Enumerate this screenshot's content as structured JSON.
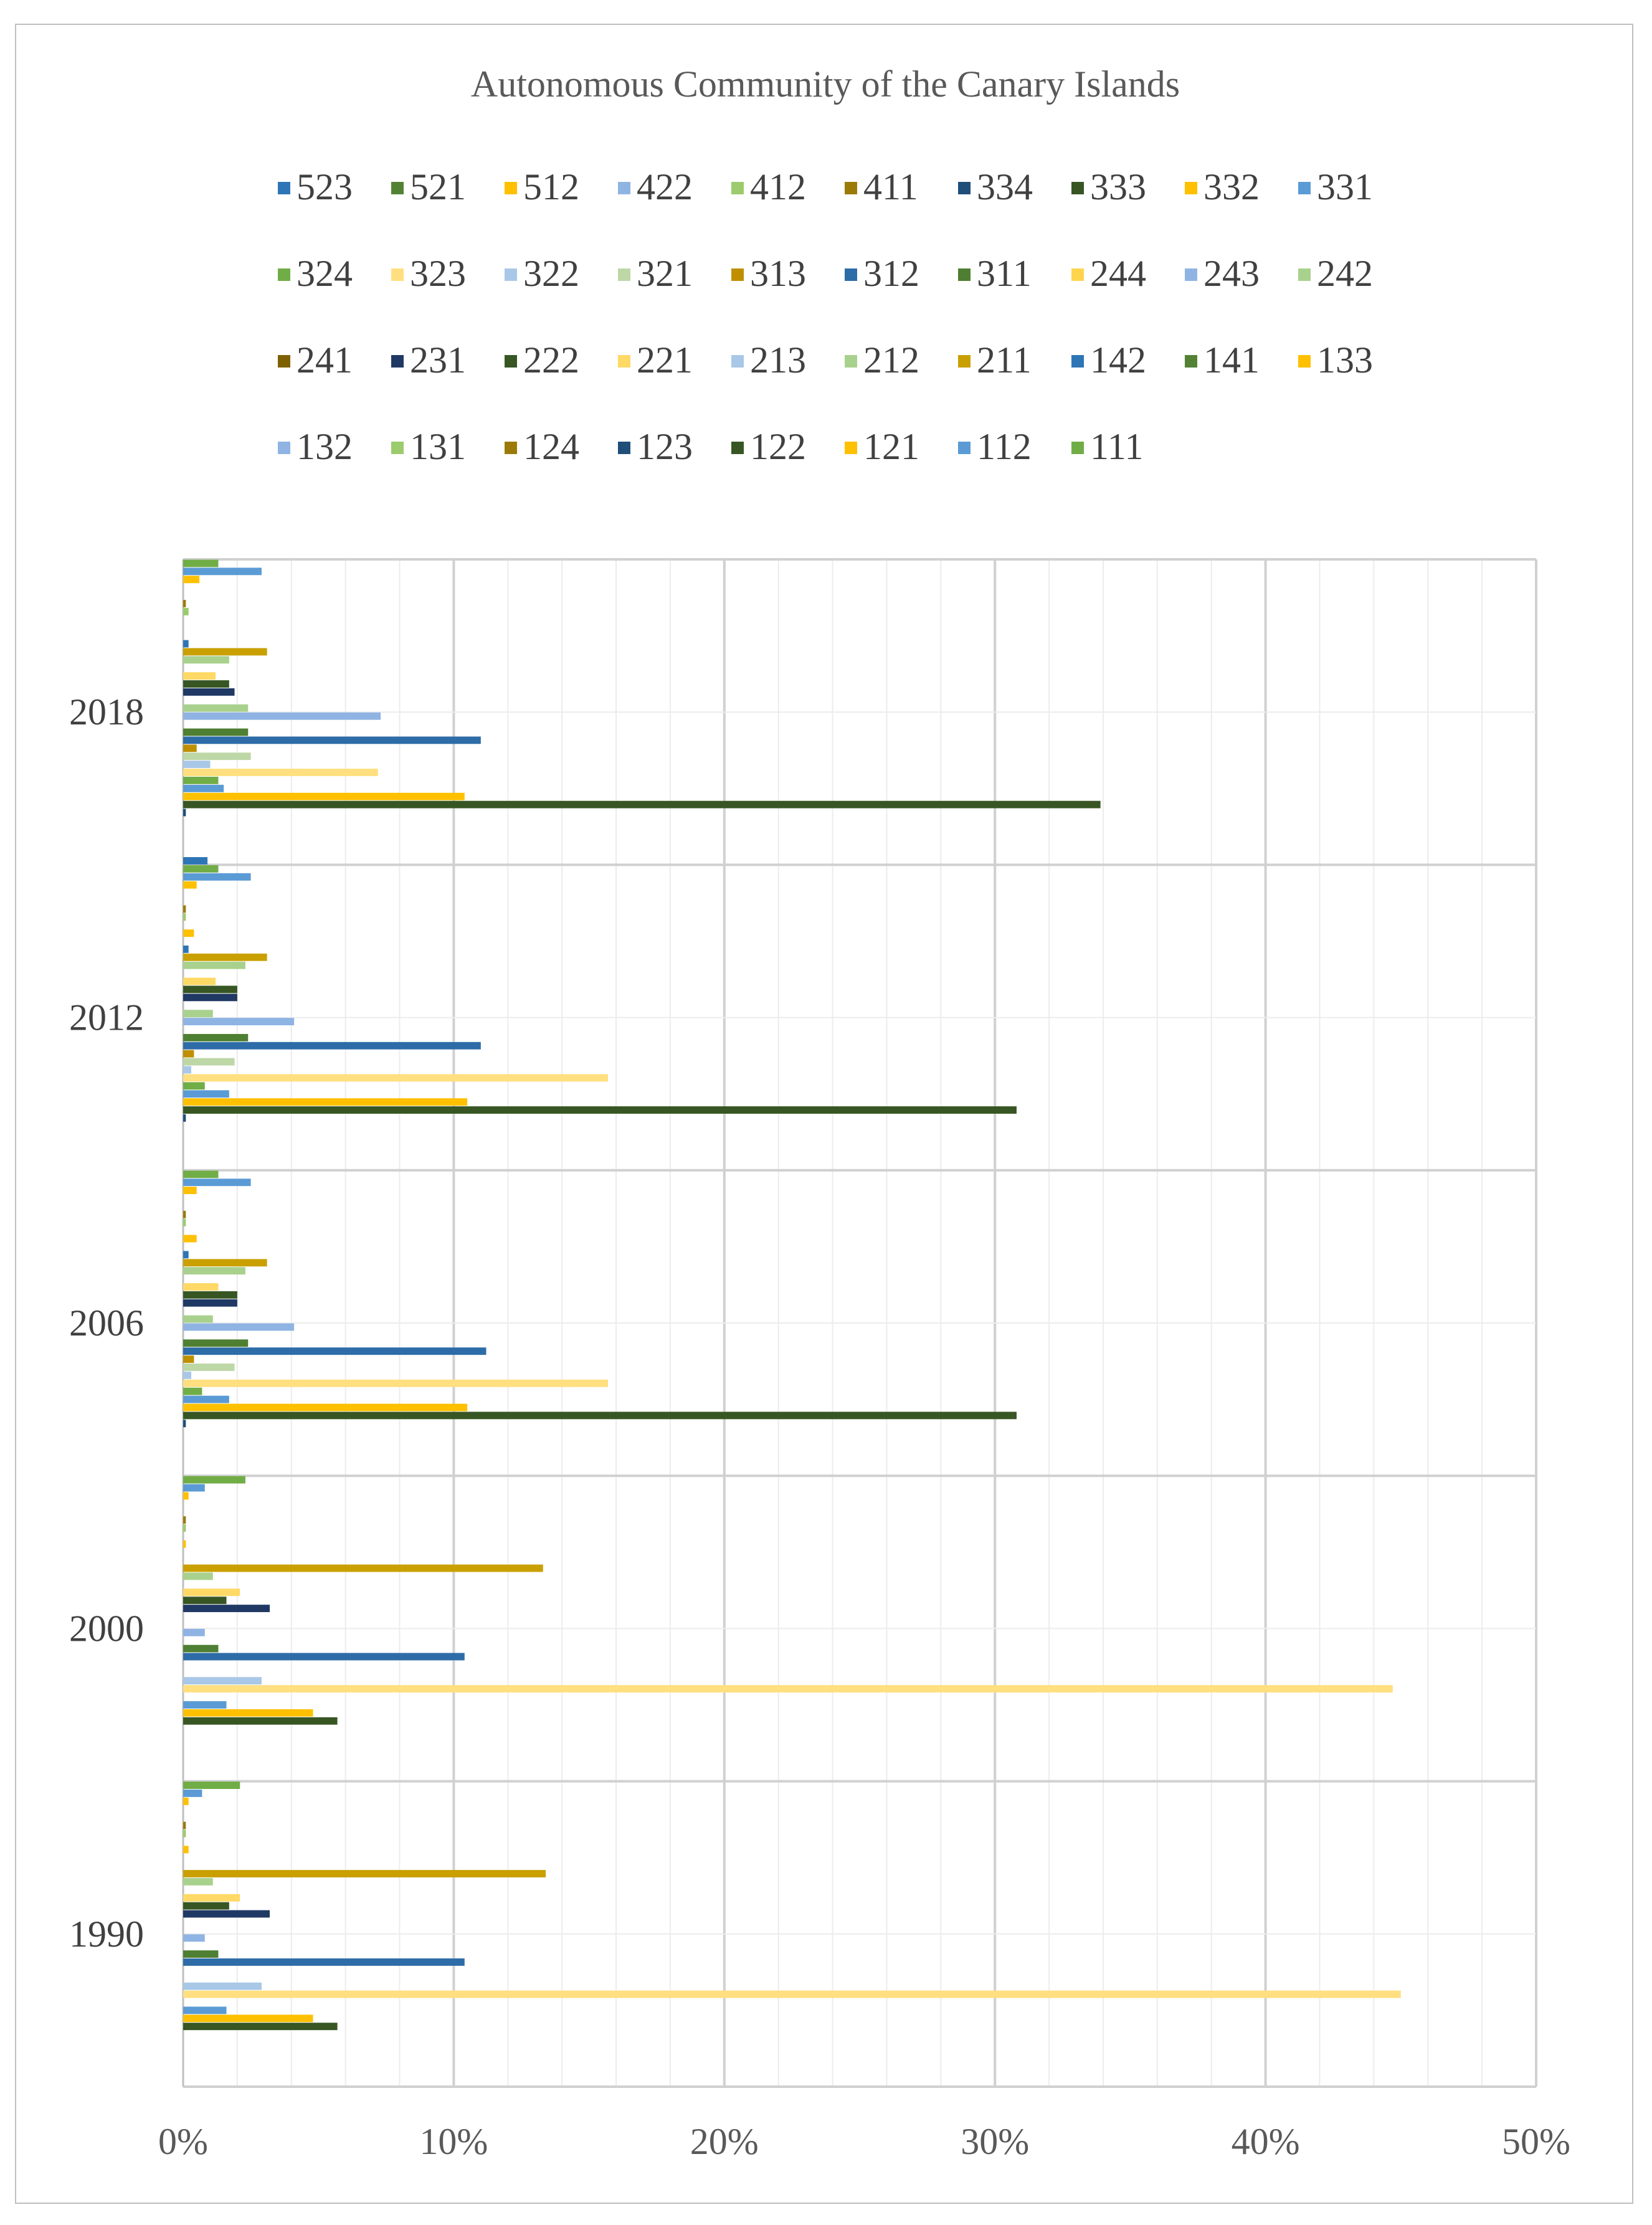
{
  "chart_data": {
    "type": "bar",
    "orientation": "horizontal",
    "title": "Autonomous Community of the Canary Islands",
    "xlabel": "",
    "ylabel": "",
    "xlim": [
      0,
      0.5
    ],
    "x_tick_labels": [
      "0%",
      "10%",
      "20%",
      "30%",
      "40%",
      "50%"
    ],
    "grid": true,
    "legend_position": "top",
    "categories": [
      "1990",
      "2000",
      "2006",
      "2012",
      "2018"
    ],
    "series": [
      {
        "name": "523",
        "color": "#2E75B6",
        "values": [
          0,
          0,
          0,
          0,
          0.009
        ]
      },
      {
        "name": "521",
        "color": "#548235",
        "values": [
          0,
          0,
          0,
          0,
          0
        ]
      },
      {
        "name": "512",
        "color": "#FFC000",
        "values": [
          0,
          0,
          0,
          0,
          0
        ]
      },
      {
        "name": "422",
        "color": "#8FB4E3",
        "values": [
          0,
          0,
          0,
          0,
          0
        ]
      },
      {
        "name": "412",
        "color": "#9BCB6C",
        "values": [
          0,
          0,
          0,
          0,
          0
        ]
      },
      {
        "name": "411",
        "color": "#9C7A0A",
        "values": [
          0,
          0,
          0,
          0,
          0
        ]
      },
      {
        "name": "334",
        "color": "#1F4E79",
        "values": [
          0,
          0,
          0.001,
          0.001,
          0.001
        ]
      },
      {
        "name": "333",
        "color": "#375623",
        "values": [
          0.057,
          0.057,
          0.308,
          0.308,
          0.339
        ]
      },
      {
        "name": "332",
        "color": "#FFC000",
        "values": [
          0.048,
          0.048,
          0.105,
          0.105,
          0.104
        ]
      },
      {
        "name": "331",
        "color": "#5B9BD5",
        "values": [
          0.016,
          0.016,
          0.017,
          0.017,
          0.015
        ]
      },
      {
        "name": "324",
        "color": "#70AD47",
        "values": [
          0,
          0,
          0.007,
          0.008,
          0.013
        ]
      },
      {
        "name": "323",
        "color": "#FFDF7F",
        "values": [
          0.45,
          0.447,
          0.157,
          0.157,
          0.072
        ]
      },
      {
        "name": "322",
        "color": "#A9C8E8",
        "values": [
          0.029,
          0.029,
          0.003,
          0.003,
          0.01
        ]
      },
      {
        "name": "321",
        "color": "#BDD7A6",
        "values": [
          0,
          0,
          0.019,
          0.019,
          0.025
        ]
      },
      {
        "name": "313",
        "color": "#BF8F00",
        "values": [
          0,
          0,
          0.004,
          0.004,
          0.005
        ]
      },
      {
        "name": "312",
        "color": "#2E6CA8",
        "values": [
          0.104,
          0.104,
          0.112,
          0.11,
          0.11
        ]
      },
      {
        "name": "311",
        "color": "#4E7F32",
        "values": [
          0.013,
          0.013,
          0.024,
          0.024,
          0.024
        ]
      },
      {
        "name": "244",
        "color": "#FFD54F",
        "values": [
          0,
          0,
          0,
          0,
          0
        ]
      },
      {
        "name": "243",
        "color": "#8FB4E3",
        "values": [
          0.008,
          0.008,
          0.041,
          0.041,
          0.073
        ]
      },
      {
        "name": "242",
        "color": "#A9D18E",
        "values": [
          0,
          0,
          0.011,
          0.011,
          0.024
        ]
      },
      {
        "name": "241",
        "color": "#7F6000",
        "values": [
          0,
          0,
          0,
          0,
          0
        ]
      },
      {
        "name": "231",
        "color": "#203864",
        "values": [
          0.032,
          0.032,
          0.02,
          0.02,
          0.019
        ]
      },
      {
        "name": "222",
        "color": "#375623",
        "values": [
          0.017,
          0.016,
          0.02,
          0.02,
          0.017
        ]
      },
      {
        "name": "221",
        "color": "#FFD966",
        "values": [
          0.021,
          0.021,
          0.013,
          0.012,
          0.012
        ]
      },
      {
        "name": "213",
        "color": "#A9C8E8",
        "values": [
          0,
          0,
          0,
          0,
          0
        ]
      },
      {
        "name": "212",
        "color": "#A9D18E",
        "values": [
          0.011,
          0.011,
          0.023,
          0.023,
          0.017
        ]
      },
      {
        "name": "211",
        "color": "#C9A000",
        "values": [
          0.134,
          0.133,
          0.031,
          0.031,
          0.031
        ]
      },
      {
        "name": "142",
        "color": "#2E75B6",
        "values": [
          0,
          0,
          0.002,
          0.002,
          0.002
        ]
      },
      {
        "name": "141",
        "color": "#548235",
        "values": [
          0,
          0,
          0,
          0,
          0
        ]
      },
      {
        "name": "133",
        "color": "#FFC000",
        "values": [
          0.002,
          0.001,
          0.005,
          0.004,
          0
        ]
      },
      {
        "name": "132",
        "color": "#8FB4E3",
        "values": [
          0,
          0,
          0,
          0,
          0
        ]
      },
      {
        "name": "131",
        "color": "#9BCB6C",
        "values": [
          0.001,
          0.001,
          0.001,
          0.001,
          0.002
        ]
      },
      {
        "name": "124",
        "color": "#9C7A0A",
        "values": [
          0.001,
          0.001,
          0.001,
          0.001,
          0.001
        ]
      },
      {
        "name": "123",
        "color": "#1F4E79",
        "values": [
          0,
          0,
          0,
          0,
          0
        ]
      },
      {
        "name": "122",
        "color": "#375623",
        "values": [
          0,
          0,
          0,
          0,
          0
        ]
      },
      {
        "name": "121",
        "color": "#FFC000",
        "values": [
          0.002,
          0.002,
          0.005,
          0.005,
          0.006
        ]
      },
      {
        "name": "112",
        "color": "#5B9BD5",
        "values": [
          0.007,
          0.008,
          0.025,
          0.025,
          0.029
        ]
      },
      {
        "name": "111",
        "color": "#70AD47",
        "values": [
          0.021,
          0.023,
          0.013,
          0.013,
          0.013
        ]
      }
    ]
  }
}
